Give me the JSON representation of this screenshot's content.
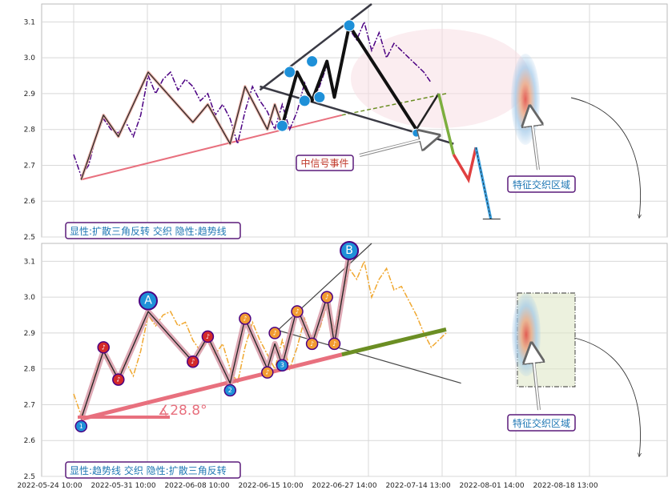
{
  "chart_data": {
    "type": "line",
    "x_labels": [
      "2022-05-24 10:00",
      "2022-05-31 10:00",
      "2022-06-08 10:00",
      "2022-06-15 10:00",
      "2022-06-27 14:00",
      "2022-07-14 13:00",
      "2022-08-01 14:00",
      "2022-08-18 13:00"
    ],
    "panels": [
      {
        "id": "top",
        "ylim": [
          2.5,
          3.15
        ],
        "yticks": [
          "2.5",
          "2.6",
          "2.7",
          "2.8",
          "2.9",
          "3.0",
          "3.1"
        ],
        "price": [
          [
            0,
            2.73
          ],
          [
            1,
            2.67
          ],
          [
            2,
            2.7
          ],
          [
            3,
            2.78
          ],
          [
            4,
            2.83
          ],
          [
            5,
            2.8
          ],
          [
            6,
            2.79
          ],
          [
            7,
            2.82
          ],
          [
            8,
            2.78
          ],
          [
            9,
            2.84
          ],
          [
            10,
            2.95
          ],
          [
            11,
            2.9
          ],
          [
            12,
            2.94
          ],
          [
            13,
            2.96
          ],
          [
            14,
            2.91
          ],
          [
            15,
            2.94
          ],
          [
            16,
            2.92
          ],
          [
            17,
            2.88
          ],
          [
            18,
            2.9
          ],
          [
            19,
            2.84
          ],
          [
            20,
            2.87
          ],
          [
            21,
            2.83
          ],
          [
            22,
            2.76
          ],
          [
            23,
            2.85
          ],
          [
            24,
            2.92
          ],
          [
            25,
            2.88
          ],
          [
            26,
            2.85
          ],
          [
            27,
            2.8
          ],
          [
            28,
            2.87
          ],
          [
            29,
            2.8
          ],
          [
            30,
            2.85
          ],
          [
            31,
            2.93
          ],
          [
            32,
            2.88
          ],
          [
            33,
            2.92
          ],
          [
            34,
            2.98
          ],
          [
            35,
            2.9
          ],
          [
            36,
            3.0
          ],
          [
            37,
            3.08
          ],
          [
            38,
            3.05
          ],
          [
            39,
            3.1
          ],
          [
            40,
            3.02
          ],
          [
            41,
            3.07
          ],
          [
            42,
            3.0
          ],
          [
            43,
            3.04
          ],
          [
            44,
            3.02
          ],
          [
            45,
            3.0
          ],
          [
            46,
            2.98
          ],
          [
            47,
            2.96
          ],
          [
            48,
            2.93
          ]
        ],
        "zigzag": [
          [
            1,
            2.66
          ],
          [
            4,
            2.84
          ],
          [
            6,
            2.78
          ],
          [
            10,
            2.96
          ],
          [
            16,
            2.82
          ],
          [
            18,
            2.87
          ],
          [
            21,
            2.76
          ],
          [
            23,
            2.92
          ],
          [
            26,
            2.8
          ],
          [
            27,
            2.87
          ],
          [
            28,
            2.81
          ],
          [
            30,
            2.96
          ],
          [
            32,
            2.88
          ],
          [
            34,
            2.99
          ],
          [
            35,
            2.89
          ],
          [
            37,
            3.09
          ],
          [
            46,
            2.8
          ]
        ],
        "projection": [
          [
            46,
            2.8
          ],
          [
            49,
            2.9
          ],
          [
            51,
            2.73
          ],
          [
            53,
            2.66
          ],
          [
            54,
            2.75
          ],
          [
            56,
            2.55
          ]
        ],
        "trendline": [
          [
            1,
            2.66
          ],
          [
            36,
            2.84
          ]
        ],
        "trendline_ext": [
          [
            36,
            2.84
          ],
          [
            50,
            2.9
          ]
        ],
        "triangle_upper": [
          [
            25,
            2.91
          ],
          [
            40,
            3.15
          ]
        ],
        "triangle_lower": [
          [
            25,
            2.92
          ],
          [
            51,
            2.76
          ]
        ],
        "signal_points": [
          [
            28,
            2.81
          ],
          [
            29,
            2.96
          ],
          [
            31,
            2.88
          ],
          [
            32,
            2.99
          ],
          [
            33,
            2.89
          ],
          [
            37,
            3.09
          ],
          [
            46,
            2.79
          ]
        ],
        "legend": "显性:扩散三角反转 交织 隐性:趋势线",
        "annotation_signal": "中信号事件",
        "annotation_zone": "特征交织区域"
      },
      {
        "id": "bottom",
        "ylim": [
          2.5,
          3.15
        ],
        "yticks": [
          "2.5",
          "2.6",
          "2.7",
          "2.8",
          "2.9",
          "3.0",
          "3.1"
        ],
        "price": [
          [
            0,
            2.73
          ],
          [
            1,
            2.67
          ],
          [
            2,
            2.72
          ],
          [
            3,
            2.8
          ],
          [
            4,
            2.85
          ],
          [
            5,
            2.8
          ],
          [
            6,
            2.78
          ],
          [
            7,
            2.82
          ],
          [
            8,
            2.78
          ],
          [
            9,
            2.85
          ],
          [
            10,
            2.95
          ],
          [
            11,
            2.92
          ],
          [
            12,
            2.95
          ],
          [
            13,
            2.96
          ],
          [
            14,
            2.92
          ],
          [
            15,
            2.93
          ],
          [
            16,
            2.88
          ],
          [
            17,
            2.85
          ],
          [
            18,
            2.88
          ],
          [
            19,
            2.84
          ],
          [
            20,
            2.87
          ],
          [
            21,
            2.8
          ],
          [
            22,
            2.76
          ],
          [
            23,
            2.86
          ],
          [
            24,
            2.93
          ],
          [
            25,
            2.88
          ],
          [
            26,
            2.84
          ],
          [
            27,
            2.8
          ],
          [
            28,
            2.88
          ],
          [
            29,
            2.8
          ],
          [
            30,
            2.86
          ],
          [
            31,
            2.94
          ],
          [
            32,
            2.88
          ],
          [
            33,
            2.91
          ],
          [
            34,
            2.98
          ],
          [
            35,
            2.9
          ],
          [
            36,
            3.0
          ],
          [
            37,
            3.08
          ],
          [
            38,
            3.05
          ],
          [
            39,
            3.1
          ],
          [
            40,
            3.0
          ],
          [
            41,
            3.05
          ],
          [
            42,
            3.08
          ],
          [
            43,
            3.02
          ],
          [
            44,
            3.03
          ],
          [
            45,
            2.99
          ],
          [
            46,
            2.95
          ],
          [
            47,
            2.9
          ],
          [
            48,
            2.86
          ],
          [
            49,
            2.88
          ],
          [
            50,
            2.9
          ]
        ],
        "zigzag": [
          [
            1,
            2.66
          ],
          [
            4,
            2.85
          ],
          [
            6,
            2.77
          ],
          [
            10,
            2.96
          ],
          [
            16,
            2.82
          ],
          [
            18,
            2.89
          ],
          [
            21,
            2.76
          ],
          [
            23,
            2.94
          ],
          [
            26,
            2.8
          ],
          [
            27,
            2.87
          ],
          [
            28,
            2.81
          ],
          [
            30,
            2.97
          ],
          [
            32,
            2.87
          ],
          [
            34,
            3.0
          ],
          [
            35,
            2.87
          ],
          [
            37,
            3.12
          ]
        ],
        "trendline": [
          [
            1,
            2.66
          ],
          [
            36,
            2.84
          ]
        ],
        "trendline_ext": [
          [
            36,
            2.84
          ],
          [
            50,
            2.91
          ]
        ],
        "triangle_upper": [
          [
            27,
            2.9
          ],
          [
            40,
            3.15
          ]
        ],
        "triangle_lower": [
          [
            27,
            2.91
          ],
          [
            52,
            2.76
          ]
        ],
        "markers_small": [
          [
            1,
            2.64,
            "1"
          ],
          [
            4,
            2.86,
            "♪"
          ],
          [
            6,
            2.77,
            "♪"
          ],
          [
            16,
            2.82,
            "♪"
          ],
          [
            18,
            2.89,
            "♪"
          ],
          [
            21,
            2.74,
            "2"
          ],
          [
            23,
            2.94,
            "♪"
          ],
          [
            26,
            2.79,
            "♪"
          ],
          [
            27,
            2.9,
            "♪"
          ],
          [
            28,
            2.81,
            "3"
          ],
          [
            30,
            2.96,
            "♪"
          ],
          [
            32,
            2.87,
            "♪"
          ],
          [
            34,
            3.0,
            "♪"
          ],
          [
            35,
            2.87,
            "♪"
          ]
        ],
        "markers_large": [
          [
            10,
            2.99,
            "A"
          ],
          [
            37,
            3.13,
            "B"
          ]
        ],
        "angle_label": "∡28.8°",
        "legend": "显性:趋势线 交织 隐性:扩散三角反转",
        "annotation_zone": "特征交织区域"
      }
    ]
  }
}
